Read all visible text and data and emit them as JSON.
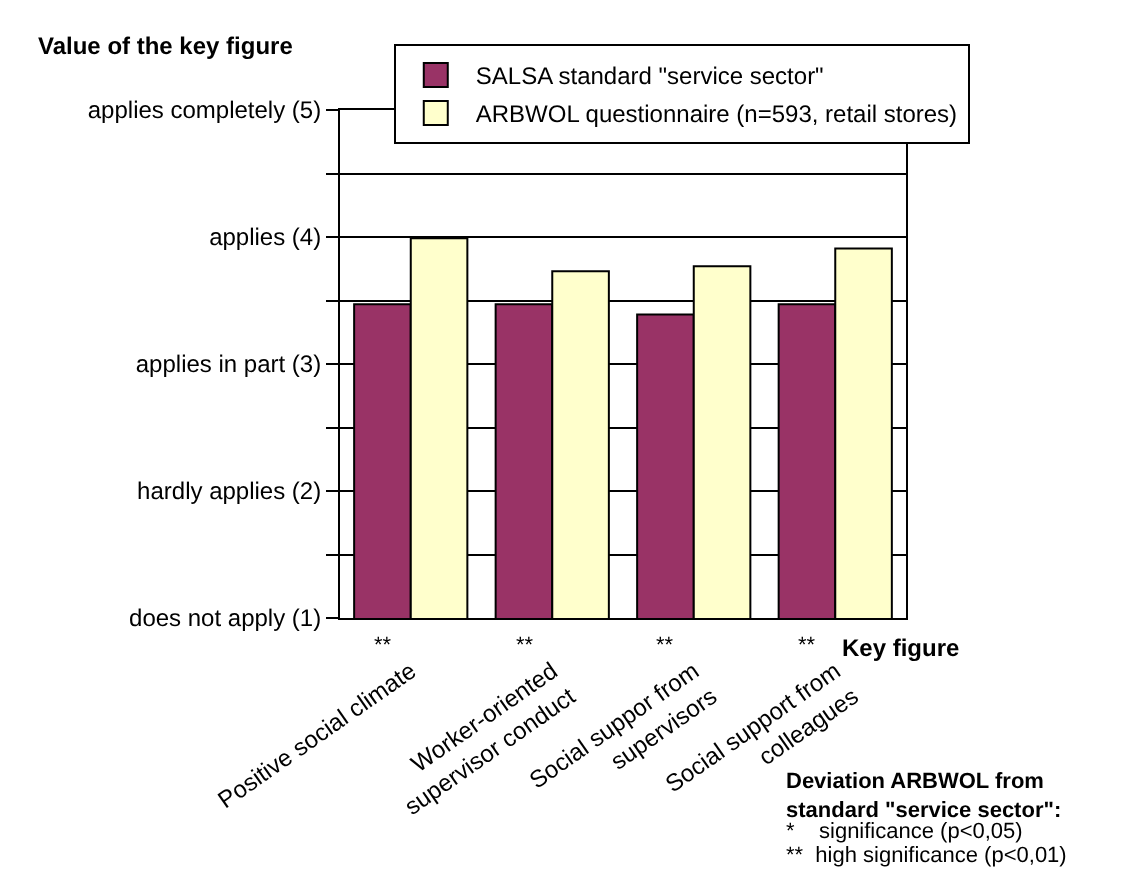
{
  "chart_data": {
    "type": "bar",
    "categories": [
      "Positive social climate",
      "Worker-oriented supervisor conduct",
      "Social suppor from supervisors",
      "Social support from colleagues"
    ],
    "series": [
      {
        "name": "SALSA standard \"service sector\"",
        "color": "#993366",
        "values": [
          3.47,
          3.47,
          3.39,
          3.47
        ]
      },
      {
        "name": "ARBWOL questionnaire (n=593, retail stores)",
        "color": "#ffffcc",
        "values": [
          3.99,
          3.73,
          3.77,
          3.91
        ]
      }
    ],
    "ylabel": "Value of the key figure",
    "xlabel": "Key figure",
    "ylim": [
      1,
      5
    ],
    "yticks": [
      {
        "value": 1,
        "label": "does not apply (1)"
      },
      {
        "value": 1.5,
        "label": null
      },
      {
        "value": 2,
        "label": "hardly applies (2)"
      },
      {
        "value": 2.5,
        "label": null
      },
      {
        "value": 3,
        "label": "applies in part (3)"
      },
      {
        "value": 3.5,
        "label": null
      },
      {
        "value": 4,
        "label": "applies (4)"
      },
      {
        "value": 4.5,
        "label": null
      },
      {
        "value": 5,
        "label": "applies completely (5)"
      }
    ],
    "grid": true,
    "legend": "top",
    "annotations": [
      "**",
      "**",
      "**",
      "**",
      "Deviation ARBWOL from standard \"service sector\":",
      "*    significance (p<0,05)",
      "**  high significance (p<0,01)"
    ]
  }
}
